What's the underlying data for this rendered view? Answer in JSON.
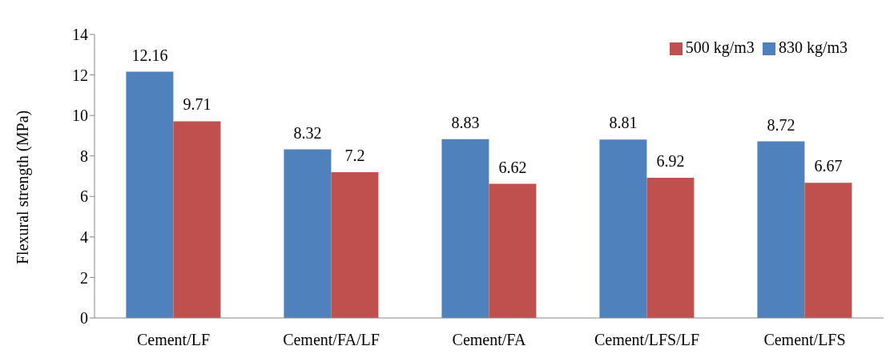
{
  "chart_data": {
    "type": "bar",
    "ylabel": "Flexural strength (MPa)",
    "categories": [
      "Cement/LF",
      "Cement/FA/LF",
      "Cement/FA",
      "Cement/LFS/LF",
      "Cement/LFS"
    ],
    "series": [
      {
        "name": "830 kg/m3",
        "color": "#4f81bd",
        "values": [
          12.16,
          8.32,
          8.83,
          8.81,
          8.72
        ]
      },
      {
        "name": "500 kg/m3",
        "color": "#c0504d",
        "values": [
          9.71,
          7.2,
          6.62,
          6.92,
          6.67
        ]
      }
    ],
    "ylim": [
      0,
      14
    ],
    "yticks": [
      0,
      2,
      4,
      6,
      8,
      10,
      12,
      14
    ],
    "grid": false,
    "legend": "top right",
    "data_labels": true
  }
}
